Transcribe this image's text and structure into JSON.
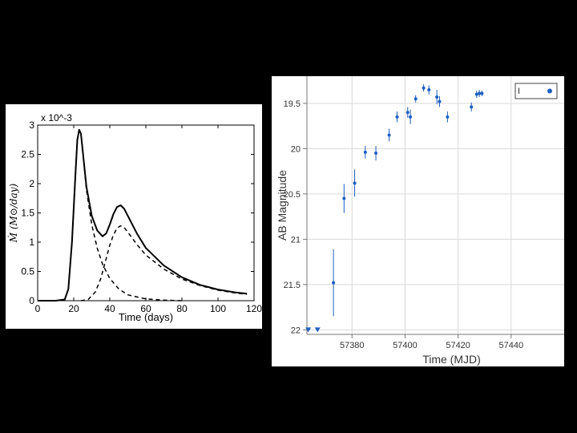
{
  "colors": {
    "background": "#000000",
    "panel": "#ffffff",
    "curve": "#000000",
    "points": "#1f5fbf",
    "grid": "#d9d9d9"
  },
  "chart_data": [
    {
      "type": "line",
      "title": "",
      "xlabel": "Time (days)",
      "ylabel": "Ṁ (M⊙/day)",
      "scale_note": "x 10^-3",
      "xlim": [
        0,
        120
      ],
      "ylim": [
        0,
        3
      ],
      "xticks": [
        0,
        20,
        40,
        60,
        80,
        100,
        120
      ],
      "yticks": [
        0,
        0.5,
        1,
        1.5,
        2,
        2.5,
        3
      ],
      "grid": false,
      "series": [
        {
          "style": "solid",
          "x": [
            0,
            10,
            15,
            17,
            19,
            21,
            22,
            23,
            24,
            25,
            27,
            30,
            33,
            36,
            38,
            40,
            42,
            44,
            46,
            48,
            50,
            55,
            60,
            70,
            80,
            90,
            100,
            110,
            116
          ],
          "y": [
            0,
            0,
            0.02,
            0.2,
            1.0,
            2.2,
            2.75,
            2.92,
            2.85,
            2.55,
            1.95,
            1.45,
            1.2,
            1.1,
            1.15,
            1.3,
            1.48,
            1.6,
            1.63,
            1.57,
            1.45,
            1.15,
            0.9,
            0.6,
            0.4,
            0.27,
            0.19,
            0.14,
            0.12
          ]
        },
        {
          "style": "dashed",
          "x": [
            0,
            10,
            15,
            17,
            19,
            21,
            22,
            23,
            24,
            25,
            27,
            30,
            33,
            36,
            40,
            45,
            50,
            60,
            70,
            80
          ],
          "y": [
            0,
            0,
            0.02,
            0.2,
            1.0,
            2.2,
            2.75,
            2.92,
            2.85,
            2.55,
            1.9,
            1.3,
            0.9,
            0.62,
            0.38,
            0.2,
            0.1,
            0.03,
            0.01,
            0
          ]
        },
        {
          "style": "dashed",
          "x": [
            24,
            28,
            32,
            35,
            38,
            40,
            42,
            44,
            46,
            48,
            50,
            55,
            60,
            70,
            80,
            90,
            100,
            110,
            116
          ],
          "y": [
            0,
            0.02,
            0.15,
            0.38,
            0.72,
            0.95,
            1.12,
            1.24,
            1.28,
            1.25,
            1.17,
            0.96,
            0.78,
            0.54,
            0.37,
            0.26,
            0.18,
            0.13,
            0.11
          ]
        }
      ]
    },
    {
      "type": "scatter",
      "title": "",
      "xlabel": "Time (MJD)",
      "ylabel": "AB Magnitude",
      "xlim": [
        57363,
        57460
      ],
      "ylim": [
        22.05,
        19.2
      ],
      "y_inverted": true,
      "xticks": [
        57380,
        57400,
        57420,
        57440
      ],
      "yticks": [
        19.5,
        20,
        20.5,
        21,
        21.5,
        22
      ],
      "ytick_labels": [
        "19.5",
        "20",
        "20.5",
        "21",
        "21.5",
        "22"
      ],
      "grid": true,
      "legend": {
        "label": "I",
        "placement": "top-right"
      },
      "series": [
        {
          "name": "I",
          "points": [
            {
              "x": 57373,
              "y": 21.48,
              "err": 0.37
            },
            {
              "x": 57377,
              "y": 20.55,
              "err": 0.16
            },
            {
              "x": 57381,
              "y": 20.38,
              "err": 0.15
            },
            {
              "x": 57385,
              "y": 20.04,
              "err": 0.07
            },
            {
              "x": 57389,
              "y": 20.05,
              "err": 0.08
            },
            {
              "x": 57394,
              "y": 19.85,
              "err": 0.07
            },
            {
              "x": 57397,
              "y": 19.65,
              "err": 0.06
            },
            {
              "x": 57401,
              "y": 19.6,
              "err": 0.06
            },
            {
              "x": 57402,
              "y": 19.65,
              "err": 0.08
            },
            {
              "x": 57404,
              "y": 19.45,
              "err": 0.04
            },
            {
              "x": 57407,
              "y": 19.33,
              "err": 0.04
            },
            {
              "x": 57409,
              "y": 19.35,
              "err": 0.05
            },
            {
              "x": 57412,
              "y": 19.43,
              "err": 0.08
            },
            {
              "x": 57413,
              "y": 19.48,
              "err": 0.06
            },
            {
              "x": 57416,
              "y": 19.65,
              "err": 0.06
            },
            {
              "x": 57425,
              "y": 19.54,
              "err": 0.05
            },
            {
              "x": 57427,
              "y": 19.4,
              "err": 0.04
            },
            {
              "x": 57428,
              "y": 19.39,
              "err": 0.04
            },
            {
              "x": 57429,
              "y": 19.39,
              "err": 0.03
            }
          ],
          "upper_limits": [
            {
              "x": 57363.5,
              "y": 22
            },
            {
              "x": 57367,
              "y": 22
            }
          ]
        }
      ]
    }
  ]
}
